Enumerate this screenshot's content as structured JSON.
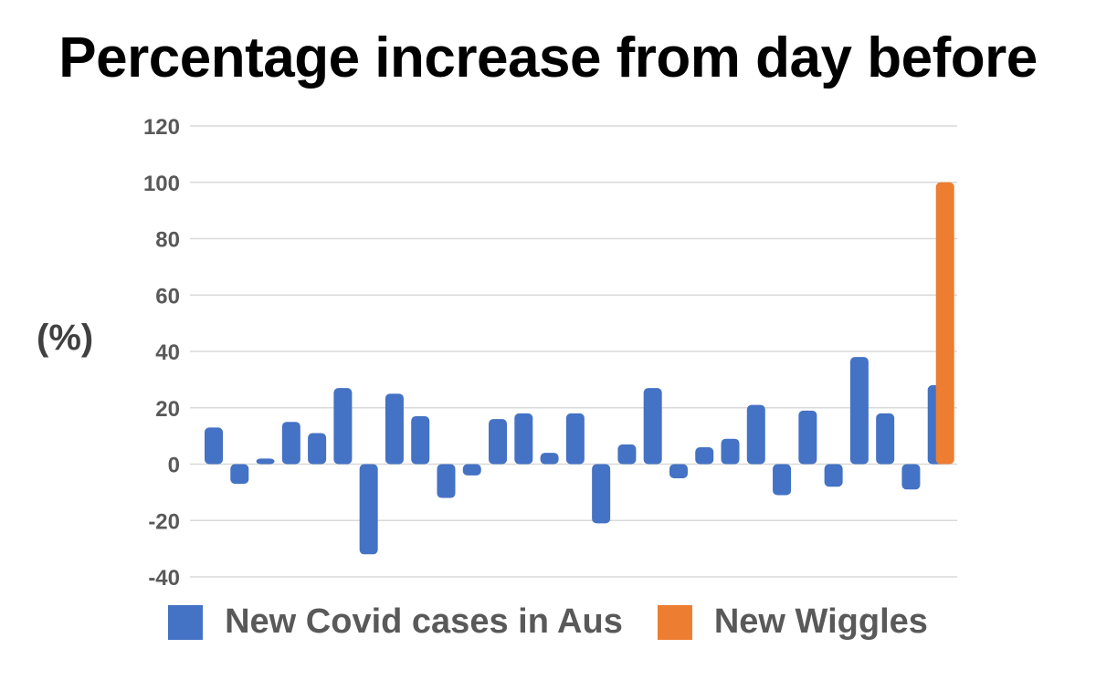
{
  "chart_data": {
    "type": "bar",
    "title": "Percentage increase from day before",
    "ylabel": "(%)",
    "xlabel": "",
    "ylim": [
      -40,
      120
    ],
    "yticks": [
      -40,
      -20,
      0,
      20,
      40,
      60,
      80,
      100,
      120
    ],
    "grid": true,
    "legend_position": "bottom",
    "series": [
      {
        "name": "New Covid cases in Aus",
        "color": "#4472C4",
        "values": [
          13,
          -7,
          2,
          15,
          11,
          27,
          -32,
          25,
          17,
          -12,
          -4,
          16,
          18,
          4,
          18,
          -21,
          7,
          27,
          -5,
          6,
          9,
          21,
          -11,
          19,
          -8,
          38,
          18,
          -9,
          28
        ]
      },
      {
        "name": "New Wiggles",
        "color": "#ED7D31",
        "values": [
          100
        ]
      }
    ]
  }
}
